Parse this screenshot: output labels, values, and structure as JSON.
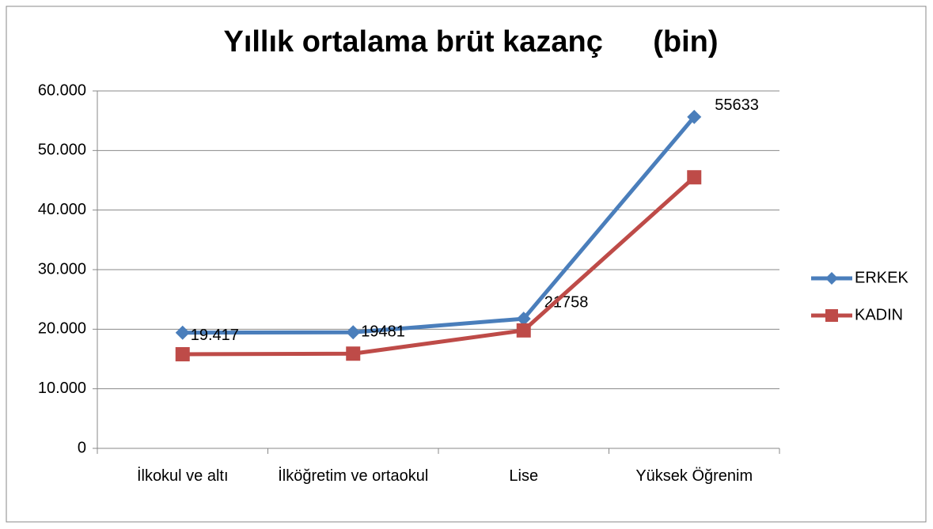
{
  "chart_data": {
    "type": "line",
    "title": "Yıllık ortalama brüt kazanç      (bin)",
    "categories": [
      "İlkokul ve altı",
      "İlköğretim ve ortaokul",
      "Lise",
      "Yüksek Öğrenim"
    ],
    "series": [
      {
        "name": "ERKEK",
        "color": "#4a7ebb",
        "marker": "diamond",
        "values": [
          19417,
          19481,
          21758,
          55633
        ],
        "value_labels": [
          "19.417",
          "19481",
          "21758",
          "55633"
        ]
      },
      {
        "name": "KADIN",
        "color": "#be4b48",
        "marker": "square",
        "values": [
          15800,
          15900,
          19800,
          45500
        ]
      }
    ],
    "ylim": [
      0,
      60000
    ],
    "yticks": [
      0,
      {
        "value": 10000,
        "label": "10.000"
      },
      {
        "value": 20000,
        "label": "20.000"
      },
      {
        "value": 30000,
        "label": "30.000"
      },
      {
        "value": 40000,
        "label": "40.000"
      },
      {
        "value": 50000,
        "label": "50.000"
      },
      {
        "value": 60000,
        "label": "60.000"
      }
    ],
    "grid": true,
    "legend": "right"
  }
}
